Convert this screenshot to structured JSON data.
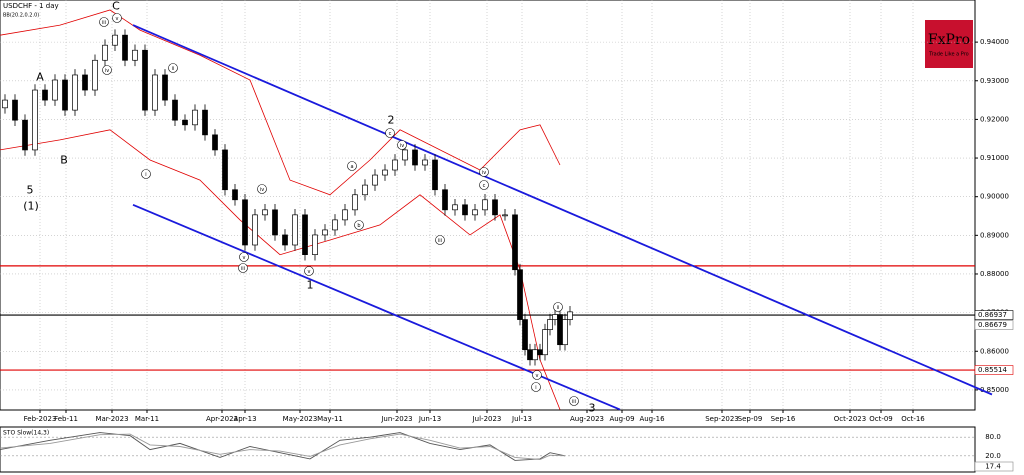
{
  "chart_data": {
    "type": "candlestick",
    "title": "USDCHF - 1 day",
    "indicator": "BB(20.2,0.2.0)",
    "logo": {
      "name": "FxPro",
      "tagline": "Trade Like a Pro"
    },
    "xlim": [
      0,
      195
    ],
    "xticks": [
      {
        "value": 8,
        "label": "Feb-2023"
      },
      {
        "value": 13.2,
        "label": "Feb-11"
      },
      {
        "value": 22.4,
        "label": "Mar-2023"
      },
      {
        "value": 29.4,
        "label": "Mar-11"
      },
      {
        "value": 44.4,
        "label": "Apr-2023"
      },
      {
        "value": 49,
        "label": "Apr-13"
      },
      {
        "value": 60,
        "label": "May-2023"
      },
      {
        "value": 66,
        "label": "May-11"
      },
      {
        "value": 79.4,
        "label": "Jun-2023"
      },
      {
        "value": 86,
        "label": "Jun-13"
      },
      {
        "value": 97.4,
        "label": "Jul-2023"
      },
      {
        "value": 104.4,
        "label": "Jul-13"
      },
      {
        "value": 117.4,
        "label": "Aug-2023"
      },
      {
        "value": 124.4,
        "label": "Aug-09"
      },
      {
        "value": 130.4,
        "label": "Aug-16"
      },
      {
        "value": 144.4,
        "label": "Sep-2023"
      },
      {
        "value": 150,
        "label": "Sep-09"
      },
      {
        "value": 156.6,
        "label": "Sep-16"
      },
      {
        "value": 170,
        "label": "Oct-2023"
      },
      {
        "value": 176.2,
        "label": "Oct-09"
      },
      {
        "value": 182.6,
        "label": "Oct-16"
      }
    ],
    "ylim": [
      0.8448,
      0.9509
    ],
    "yticks": [
      {
        "value": 0.85,
        "label": "0.85000"
      },
      {
        "value": 0.86,
        "label": "0.86000"
      },
      {
        "value": 0.87,
        "label": "0.87000"
      },
      {
        "value": 0.88,
        "label": "0.88000"
      },
      {
        "value": 0.89,
        "label": "0.89000"
      },
      {
        "value": 0.9,
        "label": "0.90000"
      },
      {
        "value": 0.91,
        "label": "0.91000"
      },
      {
        "value": 0.92,
        "label": "0.92000"
      },
      {
        "value": 0.93,
        "label": "0.93000"
      },
      {
        "value": 0.94,
        "label": "0.94000"
      }
    ],
    "grid": true,
    "x": [
      1,
      3,
      5,
      7,
      9,
      11,
      13,
      15,
      17,
      19,
      21,
      23,
      25,
      27,
      29,
      31,
      33,
      35,
      37,
      39,
      41,
      43,
      45,
      47,
      49,
      51,
      53,
      55,
      57,
      59,
      61,
      63,
      65,
      67,
      69,
      71,
      73,
      75,
      77,
      79,
      81,
      83,
      85,
      87,
      89,
      91,
      93,
      95,
      97,
      99,
      101,
      103,
      104,
      105,
      106,
      107,
      108,
      109,
      110,
      111,
      112,
      113,
      114
    ],
    "open": [
      0.923,
      0.925,
      0.9198,
      0.9121,
      0.9276,
      0.925,
      0.9302,
      0.9224,
      0.9315,
      0.9276,
      0.9353,
      0.9392,
      0.9418,
      0.9353,
      0.9379,
      0.9224,
      0.9315,
      0.925,
      0.9198,
      0.9186,
      0.9224,
      0.916,
      0.9121,
      0.9018,
      0.8992,
      0.8875,
      0.8953,
      0.8966,
      0.8901,
      0.8875,
      0.8953,
      0.885,
      0.8901,
      0.8914,
      0.894,
      0.8966,
      0.9005,
      0.903,
      0.9056,
      0.9069,
      0.9095,
      0.9121,
      0.9082,
      0.9095,
      0.9018,
      0.8966,
      0.8979,
      0.8953,
      0.8966,
      0.8992,
      0.8953,
      0.8953,
      0.8811,
      0.8682,
      0.8604,
      0.8578,
      0.8604,
      0.8591,
      0.8656,
      0.8682,
      0.8695,
      0.8617,
      0.8682
    ],
    "high": [
      0.9265,
      0.9265,
      0.9213,
      0.9291,
      0.9291,
      0.9317,
      0.9317,
      0.933,
      0.933,
      0.9368,
      0.9407,
      0.9433,
      0.9433,
      0.9394,
      0.9394,
      0.933,
      0.933,
      0.9265,
      0.9213,
      0.9239,
      0.9239,
      0.9175,
      0.9136,
      0.9033,
      0.9007,
      0.8968,
      0.8981,
      0.8981,
      0.8916,
      0.8968,
      0.8968,
      0.8916,
      0.8929,
      0.8955,
      0.8981,
      0.902,
      0.9045,
      0.9071,
      0.9084,
      0.911,
      0.9136,
      0.9136,
      0.911,
      0.911,
      0.9033,
      0.8994,
      0.8994,
      0.8981,
      0.9007,
      0.9007,
      0.8968,
      0.8968,
      0.8826,
      0.8697,
      0.8619,
      0.8619,
      0.8619,
      0.8671,
      0.8697,
      0.871,
      0.871,
      0.8697,
      0.8717
    ],
    "low": [
      0.9215,
      0.9183,
      0.9106,
      0.9106,
      0.9235,
      0.9235,
      0.9209,
      0.9209,
      0.9261,
      0.9261,
      0.9338,
      0.9377,
      0.9338,
      0.9338,
      0.9209,
      0.9209,
      0.9235,
      0.9183,
      0.9171,
      0.9171,
      0.9145,
      0.9106,
      0.9003,
      0.8977,
      0.886,
      0.886,
      0.8938,
      0.8886,
      0.886,
      0.886,
      0.8835,
      0.8835,
      0.8886,
      0.8899,
      0.8925,
      0.8951,
      0.899,
      0.9015,
      0.9041,
      0.9054,
      0.908,
      0.9067,
      0.9067,
      0.9003,
      0.8951,
      0.8951,
      0.8938,
      0.8938,
      0.8951,
      0.8938,
      0.8938,
      0.8796,
      0.8667,
      0.8589,
      0.8563,
      0.8563,
      0.8576,
      0.8576,
      0.8641,
      0.8667,
      0.8602,
      0.8602,
      0.8667
    ],
    "close": [
      0.925,
      0.9198,
      0.9121,
      0.9276,
      0.925,
      0.9302,
      0.9224,
      0.9315,
      0.9276,
      0.9353,
      0.9392,
      0.9418,
      0.9353,
      0.9379,
      0.9224,
      0.9315,
      0.925,
      0.9198,
      0.9186,
      0.9224,
      0.916,
      0.9121,
      0.9018,
      0.8992,
      0.8875,
      0.8953,
      0.8966,
      0.8901,
      0.8875,
      0.8953,
      0.885,
      0.8901,
      0.8914,
      0.894,
      0.8966,
      0.9005,
      0.903,
      0.9056,
      0.9069,
      0.9095,
      0.9121,
      0.9082,
      0.9095,
      0.9018,
      0.8966,
      0.8979,
      0.8953,
      0.8966,
      0.8992,
      0.8953,
      0.8953,
      0.8811,
      0.8682,
      0.8604,
      0.8578,
      0.8604,
      0.8591,
      0.8656,
      0.8682,
      0.8695,
      0.8617,
      0.8682,
      0.8702
    ],
    "bands": [
      {
        "color": "#e00000",
        "x": [
          0,
          12,
          22,
          28,
          40,
          50,
          58,
          66,
          74,
          80,
          88,
          96,
          104,
          108,
          112
        ],
        "values": [
          0.9418,
          0.9444,
          0.9483,
          0.9431,
          0.9366,
          0.9302,
          0.9043,
          0.9005,
          0.9095,
          0.9173,
          0.9121,
          0.9069,
          0.9173,
          0.9186,
          0.9082
        ]
      },
      {
        "color": "#e00000",
        "x": [
          0,
          12,
          22,
          30,
          40,
          48,
          56,
          66,
          76,
          84,
          94,
          100,
          104,
          108,
          112
        ],
        "values": [
          0.9121,
          0.9147,
          0.9173,
          0.9095,
          0.9043,
          0.894,
          0.885,
          0.8888,
          0.8927,
          0.9005,
          0.8901,
          0.8953,
          0.8811,
          0.8578,
          0.8449
        ]
      }
    ],
    "trendlines": [
      {
        "color": "#1a1adc",
        "x": [
          26.6,
          198.4
        ],
        "values": [
          0.9444,
          0.8488
        ]
      },
      {
        "color": "#1a1adc",
        "x": [
          26.6,
          124
        ],
        "values": [
          0.8979,
          0.8449
        ]
      }
    ],
    "levels": [
      {
        "value": 0.8821,
        "color": "#e00000"
      },
      {
        "value": 0.86937,
        "color": "#000000"
      },
      {
        "value": 0.85514,
        "color": "#e00000"
      }
    ],
    "current_price": 0.86679,
    "annotations": [
      "C",
      "A",
      "B",
      "5",
      "(1)",
      "2",
      "1",
      "3",
      "iii",
      "v",
      "iv",
      "ii",
      "i",
      "iii",
      "v",
      "v",
      "iv",
      "c",
      "iv",
      "a",
      "b",
      "iii",
      "iv",
      "c",
      "v",
      "i",
      "ii",
      "iii"
    ],
    "oscillator": {
      "name": "STO Slow(14,3)",
      "ylim": [
        0,
        100
      ],
      "yticks": [
        {
          "value": 80,
          "label": "80.0"
        },
        {
          "value": 20,
          "label": "20.0"
        }
      ],
      "current": {
        "value": 17.4,
        "label": "17.4"
      },
      "series": [
        {
          "color": "#555555",
          "x": [
            0,
            10,
            20,
            26,
            30,
            36,
            44,
            50,
            56,
            62,
            68,
            74,
            80,
            86,
            92,
            98,
            103,
            108,
            110,
            113
          ],
          "values": [
            40,
            70,
            95,
            85,
            40,
            60,
            15,
            50,
            30,
            10,
            70,
            80,
            95,
            60,
            40,
            55,
            5,
            10,
            30,
            20
          ]
        },
        {
          "color": "#999999",
          "x": [
            0,
            10,
            20,
            26,
            30,
            36,
            44,
            50,
            56,
            62,
            68,
            74,
            80,
            86,
            92,
            98,
            103,
            108,
            110,
            113
          ],
          "values": [
            45,
            60,
            88,
            90,
            55,
            50,
            25,
            40,
            35,
            18,
            55,
            75,
            90,
            70,
            45,
            50,
            15,
            8,
            22,
            20
          ]
        }
      ]
    }
  }
}
